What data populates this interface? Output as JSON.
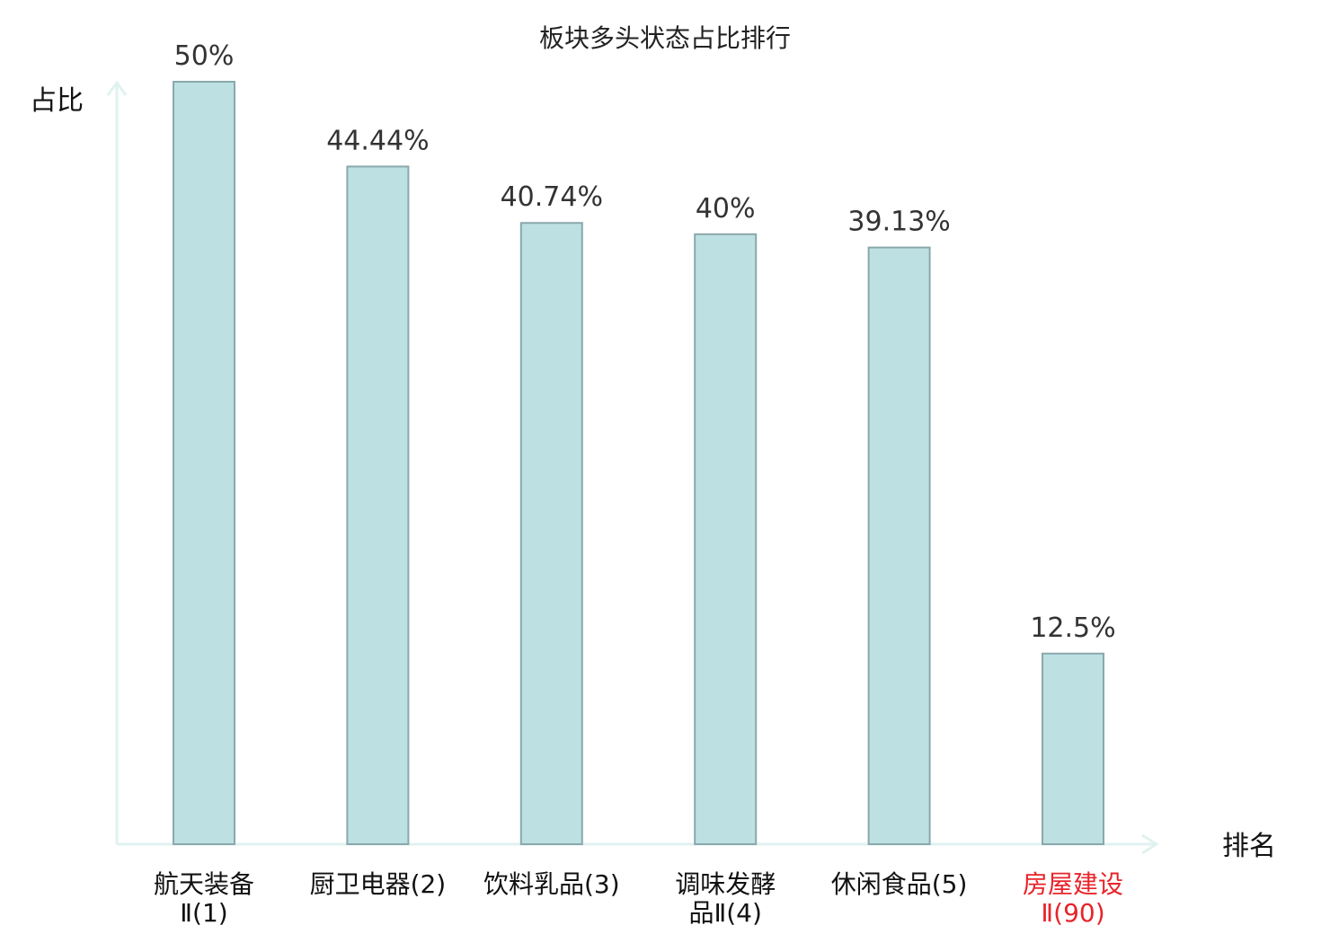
{
  "chart_data": {
    "type": "bar",
    "title": "板块多头状态占比排行",
    "ylabel": "占比",
    "xlabel": "排名",
    "ylim": [
      0,
      50
    ],
    "grid": false,
    "categories": [
      {
        "lines": [
          "航天装备",
          "Ⅱ(1)"
        ],
        "highlight": false
      },
      {
        "lines": [
          "厨卫电器(2)"
        ],
        "highlight": false
      },
      {
        "lines": [
          "饮料乳品(3)"
        ],
        "highlight": false
      },
      {
        "lines": [
          "调味发酵",
          "品Ⅱ(4)"
        ],
        "highlight": false
      },
      {
        "lines": [
          "休闲食品(5)"
        ],
        "highlight": false
      },
      {
        "lines": [
          "房屋建设",
          "Ⅱ(90)"
        ],
        "highlight": true
      }
    ],
    "values": [
      50,
      44.44,
      40.74,
      40,
      39.13,
      12.5
    ],
    "value_labels": [
      "50%",
      "44.44%",
      "40.74%",
      "40%",
      "39.13%",
      "12.5%"
    ],
    "colors": {
      "bar_fill": "#bde0e3",
      "bar_stroke": "#8aa8ac",
      "axis": "#e0f2ef",
      "highlight_label": "#e8242a"
    }
  }
}
